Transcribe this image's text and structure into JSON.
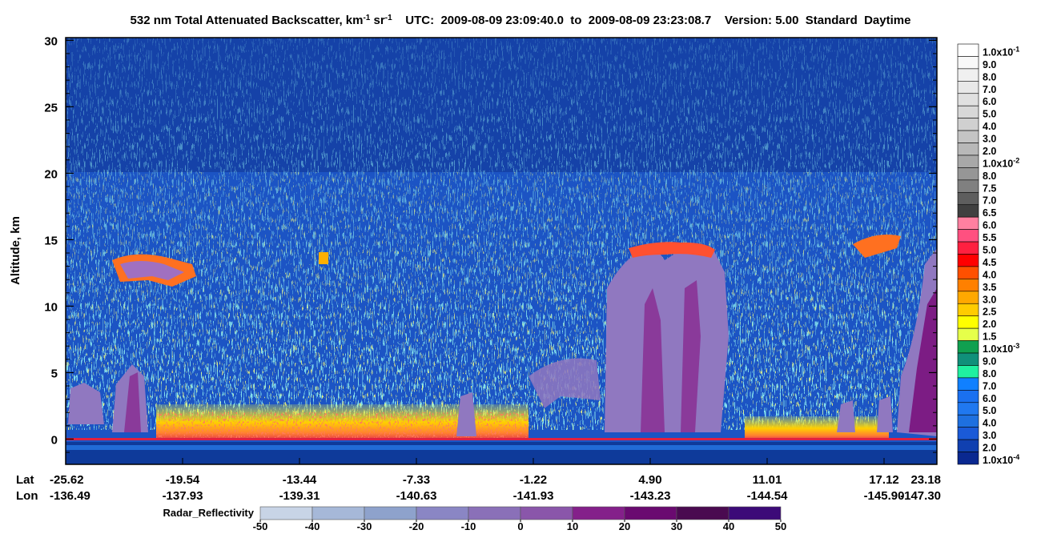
{
  "chart_data": {
    "type": "curtain",
    "title": [
      "532 nm Total Attenuated Backscatter, km",
      "-1",
      " sr",
      "-1",
      "    UTC:  2009-08-09 23:09:40.0  to  2009-08-09 23:23:08.7    Version: 5.00  Standard  Daytime"
    ],
    "y_label": "Altitude, km",
    "ylim": [
      -1.9,
      30.2
    ],
    "yticks": [
      0,
      5,
      10,
      15,
      20,
      25,
      30
    ],
    "lat_label": "Lat",
    "lon_label": "Lon",
    "lat": [
      "-25.62",
      "-19.54",
      "-13.44",
      "-7.33",
      "-1.22",
      "4.90",
      "11.01",
      "17.12",
      "23.18"
    ],
    "lon": [
      "-136.49",
      "-137.93",
      "-139.31",
      "-140.63",
      "-141.93",
      "-143.23",
      "-144.54",
      "-145.90",
      "-147.30"
    ],
    "colorbar": [
      {
        "label": "1.0x10",
        "exp": "-1",
        "color": "#ffffff"
      },
      {
        "label": "9.0",
        "color": "#f8f8f8"
      },
      {
        "label": "8.0",
        "color": "#f0f0f0"
      },
      {
        "label": "7.0",
        "color": "#e8e8e8"
      },
      {
        "label": "6.0",
        "color": "#e0e0e0"
      },
      {
        "label": "5.0",
        "color": "#d8d8d8"
      },
      {
        "label": "4.0",
        "color": "#d0d0d0"
      },
      {
        "label": "3.0",
        "color": "#c4c4c4"
      },
      {
        "label": "2.0",
        "color": "#b8b8b8"
      },
      {
        "label": "1.0x10",
        "exp": "-2",
        "color": "#a8a8a8"
      },
      {
        "label": "8.0",
        "color": "#969696"
      },
      {
        "label": "7.5",
        "color": "#808080"
      },
      {
        "label": "7.0",
        "color": "#5e5e5e"
      },
      {
        "label": "6.5",
        "color": "#404040"
      },
      {
        "label": "6.0",
        "color": "#ff80a0"
      },
      {
        "label": "5.5",
        "color": "#ff5080"
      },
      {
        "label": "5.0",
        "color": "#ff2040"
      },
      {
        "label": "4.5",
        "color": "#ff0000"
      },
      {
        "label": "4.0",
        "color": "#ff5000"
      },
      {
        "label": "3.5",
        "color": "#ff8000"
      },
      {
        "label": "3.0",
        "color": "#ffa800"
      },
      {
        "label": "2.5",
        "color": "#ffcc00"
      },
      {
        "label": "2.0",
        "color": "#ffff00"
      },
      {
        "label": "1.5",
        "color": "#e6ff4a"
      },
      {
        "label": "1.0x10",
        "exp": "-3",
        "color": "#10a050"
      },
      {
        "label": "9.0",
        "color": "#10907a"
      },
      {
        "label": "8.0",
        "color": "#20f0a0"
      },
      {
        "label": "7.0",
        "color": "#1080ff"
      },
      {
        "label": "6.0",
        "color": "#1a70f0"
      },
      {
        "label": "5.0",
        "color": "#2078f0"
      },
      {
        "label": "4.0",
        "color": "#1e70e0"
      },
      {
        "label": "3.0",
        "color": "#1a5ad8"
      },
      {
        "label": "2.0",
        "color": "#1040b0"
      },
      {
        "label": "1.0x10",
        "exp": "-4",
        "color": "#0a2890"
      }
    ],
    "radar": {
      "label": "Radar_Reflectivity",
      "xlim": [
        -50,
        50
      ],
      "xticks": [
        -50,
        -40,
        -30,
        -20,
        -10,
        0,
        10,
        20,
        30,
        40,
        50
      ],
      "colors": [
        "#c8d4e6",
        "#a6b8d8",
        "#8ea2cc",
        "#8a86c4",
        "#8a70b8",
        "#8a56aa",
        "#84208a",
        "#6a0a70",
        "#4a0a50",
        "#3c0a78"
      ]
    }
  }
}
